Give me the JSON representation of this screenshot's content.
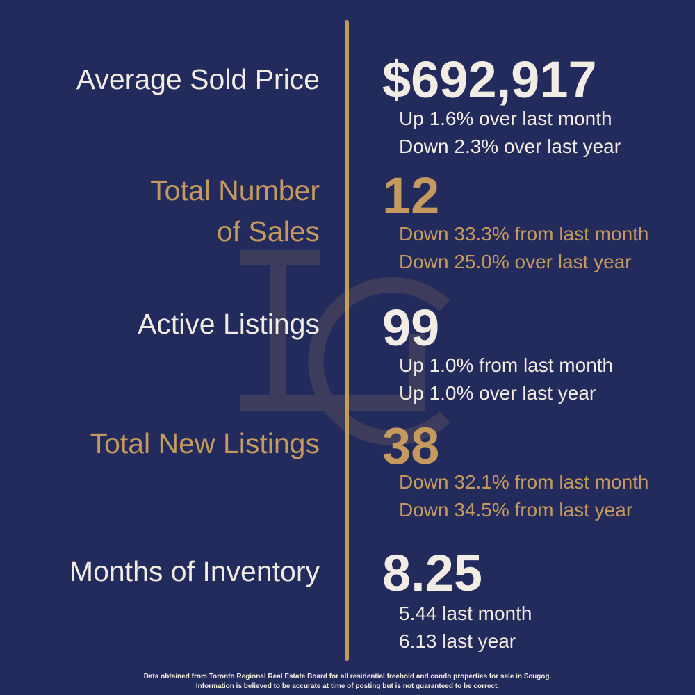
{
  "stats": [
    {
      "label": [
        "Average Sold Price"
      ],
      "value": "$692,917",
      "notes": [
        "Up 1.6% over last month",
        "Down 2.3% over last year"
      ]
    },
    {
      "label": [
        "Total Number",
        "of Sales"
      ],
      "value": "12",
      "notes": [
        "Down 33.3% from last month",
        "Down 25.0% over last year"
      ]
    },
    {
      "label": [
        "Active Listings"
      ],
      "value": "99",
      "notes": [
        "Up 1.0% from last month",
        "Up 1.0% over last year"
      ]
    },
    {
      "label": [
        "Total New Listings"
      ],
      "value": "38",
      "notes": [
        "Down 32.1% from last month",
        "Down 34.5% from last year"
      ]
    },
    {
      "label": [
        "Months of Inventory"
      ],
      "value": "8.25",
      "notes": [
        "5.44 last month",
        "6.13 last year"
      ]
    }
  ],
  "footer": [
    "Data obtained from Toronto Regional Real Estate Board for all residential freehold and condo properties for sale in Scugog.",
    "Information is believed to be accurate at time of posting but is not guaranteed to be correct."
  ]
}
